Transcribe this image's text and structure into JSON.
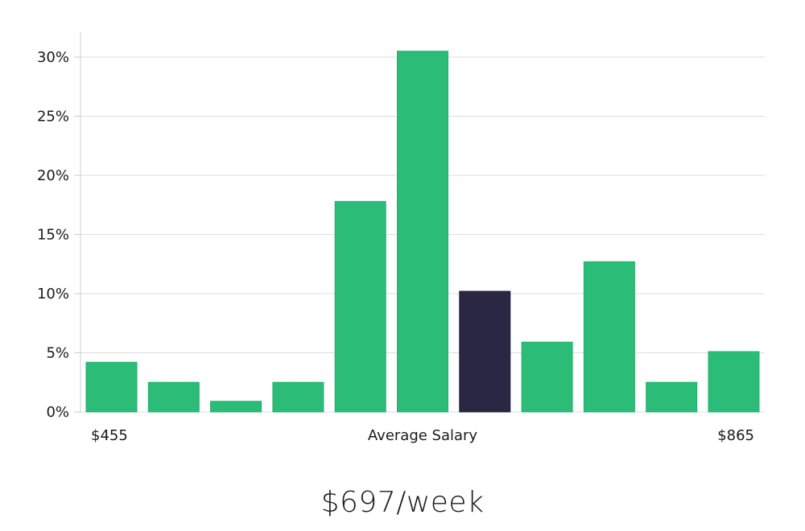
{
  "headline": "$697/week",
  "chart_data": {
    "type": "bar",
    "title": "",
    "xlabel": "Average Salary",
    "ylabel": "",
    "x_start_label": "$455",
    "x_end_label": "$865",
    "y_ticks": [
      "0%",
      "5%",
      "10%",
      "15%",
      "20%",
      "25%",
      "30%"
    ],
    "ylim": [
      0,
      32
    ],
    "grid": true,
    "values": [
      4.2,
      2.5,
      0.9,
      2.5,
      17.8,
      30.5,
      10.2,
      5.9,
      12.7,
      2.5,
      5.1
    ],
    "highlight_index": 6,
    "colors": {
      "bar": "#2bbd77",
      "highlight": "#2a2745",
      "grid": "#dddddd",
      "axis": "#cccccc"
    }
  }
}
